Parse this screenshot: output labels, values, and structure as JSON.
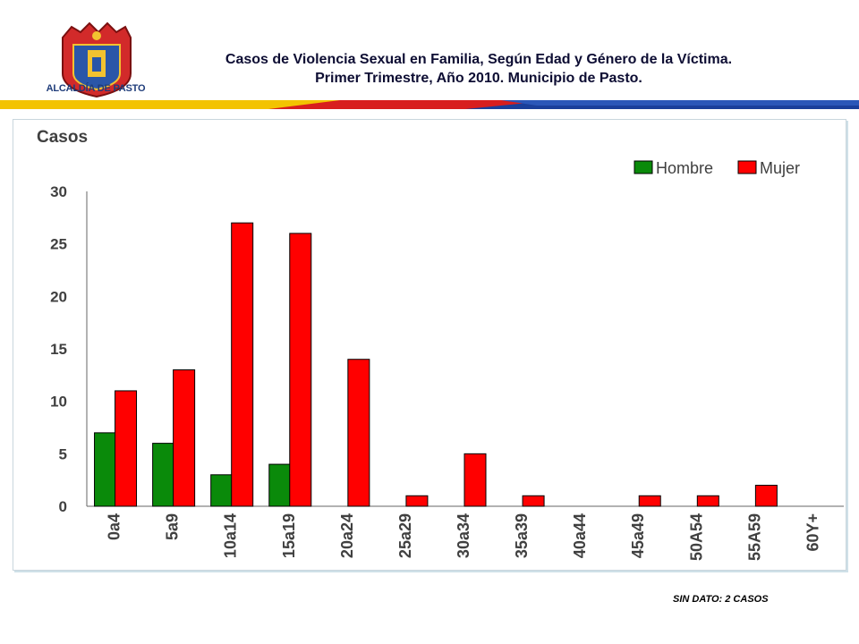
{
  "header": {
    "logo_text": "ALCALDÍA DE PASTO",
    "title_line1": "Casos de Violencia Sexual en Familia, Según Edad y Género de la Víctima.",
    "title_line2": "Primer Trimestre, Año 2010. Municipio de Pasto."
  },
  "footnote": "SIN DATO:  2 CASOS",
  "chart_data": {
    "type": "bar",
    "ylabel": "Casos",
    "xlabel": "",
    "ylim": [
      0,
      30
    ],
    "yticks": [
      0,
      5,
      10,
      15,
      20,
      25,
      30
    ],
    "legend_position": "top-right",
    "grid": false,
    "categories": [
      "0a4",
      "5a9",
      "10a14",
      "15a19",
      "20a24",
      "25a29",
      "30a34",
      "35a39",
      "40a44",
      "45a49",
      "50A54",
      "55A59",
      "60Y+"
    ],
    "series": [
      {
        "name": "Hombre",
        "color": "#0a8a0a",
        "values": [
          7,
          6,
          3,
          4,
          0,
          0,
          0,
          0,
          0,
          0,
          0,
          0,
          0
        ]
      },
      {
        "name": "Mujer",
        "color": "#ff0000",
        "values": [
          11,
          13,
          27,
          26,
          14,
          1,
          5,
          1,
          0,
          1,
          1,
          2,
          0
        ]
      }
    ]
  }
}
